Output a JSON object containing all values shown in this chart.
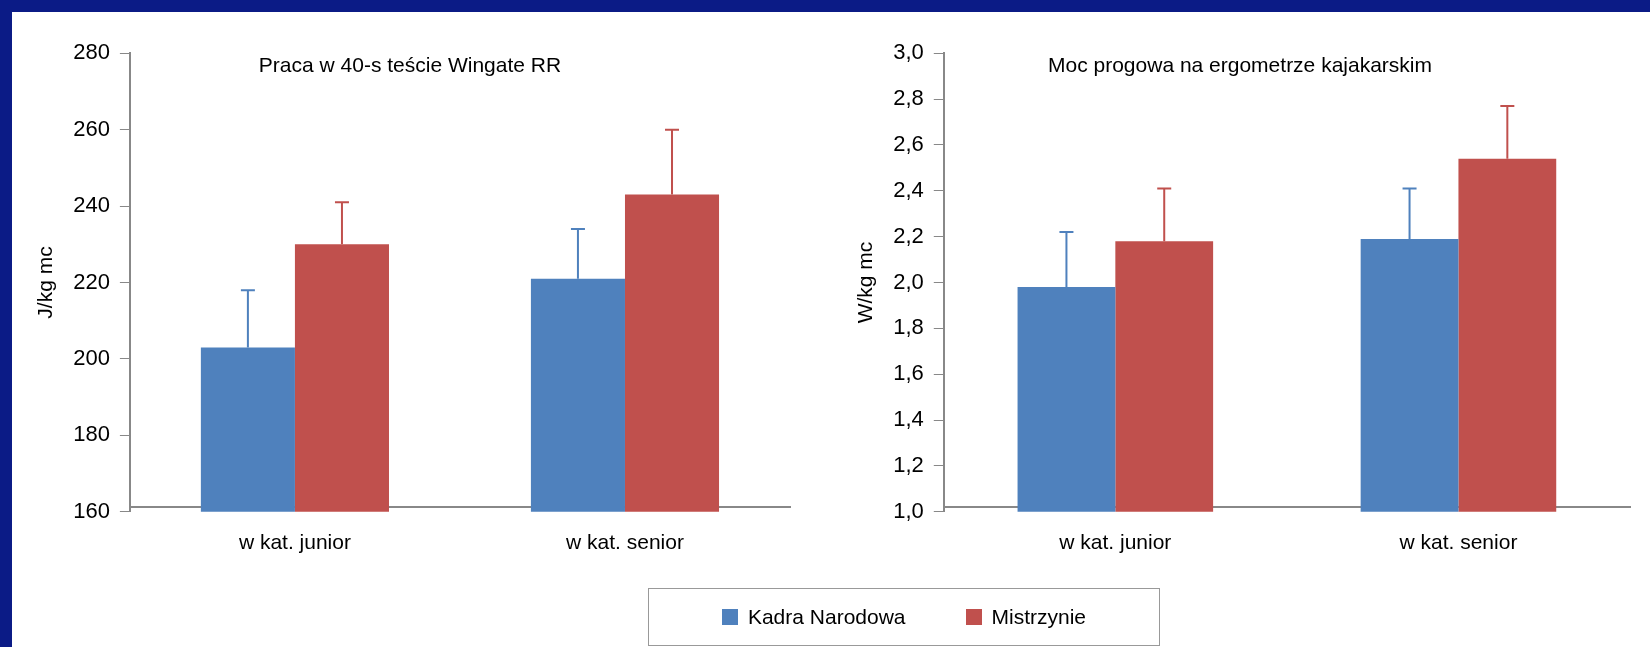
{
  "chart_data": [
    {
      "type": "bar",
      "title": "Praca w 40-s teście Wingate RR",
      "ylabel": "J/kg mc",
      "categories": [
        "w kat. junior",
        "w kat. senior"
      ],
      "series": [
        {
          "name": "Kadra Narodowa",
          "color": "#4f81bd",
          "values": [
            203,
            221
          ],
          "errors": [
            [
              203,
              218
            ],
            [
              221,
              234
            ]
          ]
        },
        {
          "name": "Mistrzynie",
          "color": "#c0504d",
          "values": [
            230,
            243
          ],
          "errors": [
            [
              230,
              241
            ],
            [
              243,
              260
            ]
          ]
        }
      ],
      "ylim": [
        160,
        280
      ],
      "yticks": [
        160,
        180,
        200,
        220,
        240,
        260,
        280
      ],
      "grid": false,
      "legend": "bottom"
    },
    {
      "type": "bar",
      "title": "Moc progowa na ergometrze kajakarskim",
      "ylabel": "W/kg mc",
      "categories": [
        "w kat. junior",
        "w kat. senior"
      ],
      "series": [
        {
          "color": "#4f81bd",
          "values": [
            1.98,
            2.19
          ],
          "errors": [
            [
              1.98,
              2.22
            ],
            [
              2.19,
              2.41
            ]
          ]
        },
        {
          "color": "#c0504d",
          "values": [
            2.18,
            2.54
          ],
          "errors": [
            [
              2.18,
              2.41
            ],
            [
              2.54,
              2.77
            ]
          ]
        }
      ],
      "ylim": [
        1.0,
        3.0
      ],
      "yticks": [
        {
          "value": 1.0,
          "label": "1,0"
        },
        {
          "value": 1.2,
          "label": "1,2"
        },
        {
          "value": 1.4,
          "label": "1,4"
        },
        {
          "value": 1.6,
          "label": "1,6"
        },
        {
          "value": 1.8,
          "label": "1,8"
        },
        {
          "value": 2.0,
          "label": "2,0"
        },
        {
          "value": 2.2,
          "label": "2,2"
        },
        {
          "value": 2.4,
          "label": "2,4"
        },
        {
          "value": 2.6,
          "label": "2,6"
        },
        {
          "value": 2.8,
          "label": "2,8"
        },
        {
          "value": 3.0,
          "label": "3,0"
        }
      ],
      "grid": false
    }
  ]
}
